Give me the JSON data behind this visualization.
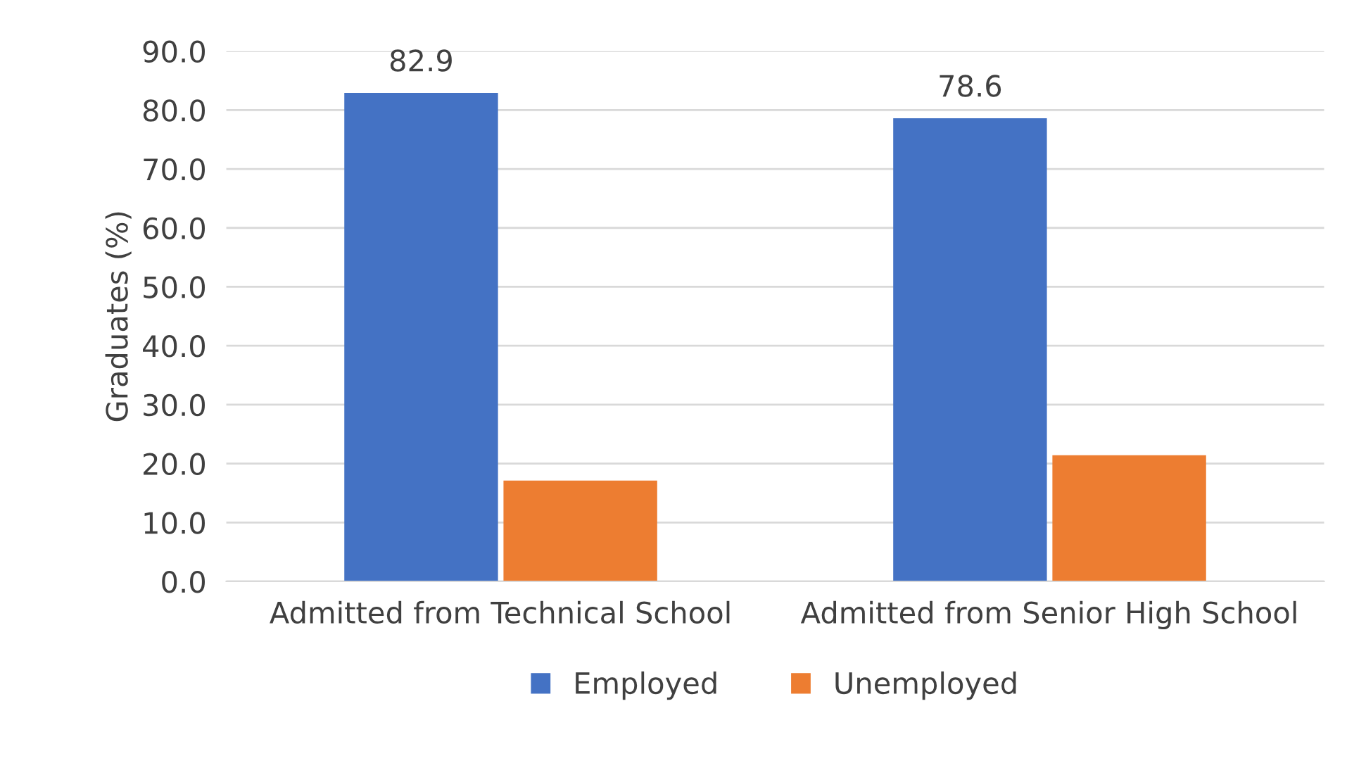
{
  "chart_data": {
    "type": "bar",
    "ylabel": "Graduates (%)",
    "categories": [
      "Admitted from Technical School",
      "Admitted from Senior High School"
    ],
    "series": [
      {
        "name": "Employed",
        "color": "#4472c4",
        "values": [
          82.9,
          78.6
        ],
        "value_labels": [
          "82.9",
          "78.6"
        ]
      },
      {
        "name": "Unemployed",
        "color": "#ed7d31",
        "values": [
          17.1,
          21.4
        ],
        "value_labels": [
          null,
          null
        ]
      }
    ],
    "ylim": [
      0,
      90
    ],
    "yticks": [
      {
        "value": 0,
        "label": "0.0"
      },
      {
        "value": 10,
        "label": "10.0"
      },
      {
        "value": 20,
        "label": "20.0"
      },
      {
        "value": 30,
        "label": "30.0"
      },
      {
        "value": 40,
        "label": "40.0"
      },
      {
        "value": 50,
        "label": "50.0"
      },
      {
        "value": 60,
        "label": "60.0"
      },
      {
        "value": 70,
        "label": "70.0"
      },
      {
        "value": 80,
        "label": "80.0"
      },
      {
        "value": 90,
        "label": "90.0"
      }
    ],
    "grid": "y",
    "legend": "bottom"
  }
}
